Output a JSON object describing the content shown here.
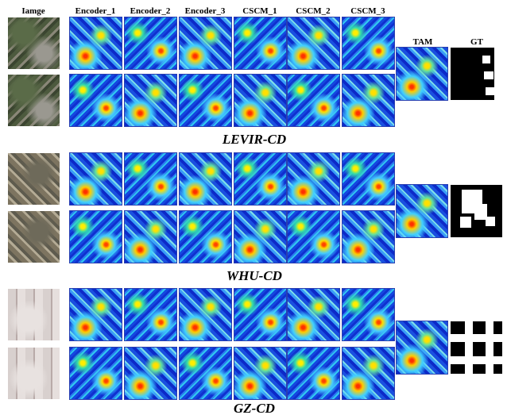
{
  "header": {
    "columns": [
      "Iamge",
      "Encoder_1",
      "Encoder_2",
      "Encoder_3",
      "CSCM_1",
      "CSCM_2",
      "CSCM_3"
    ],
    "tam": "TAM",
    "gt": "GT"
  },
  "groups": [
    {
      "label": "LEVIR-CD"
    },
    {
      "label": "WHU-CD"
    },
    {
      "label": "GZ-CD"
    }
  ]
}
